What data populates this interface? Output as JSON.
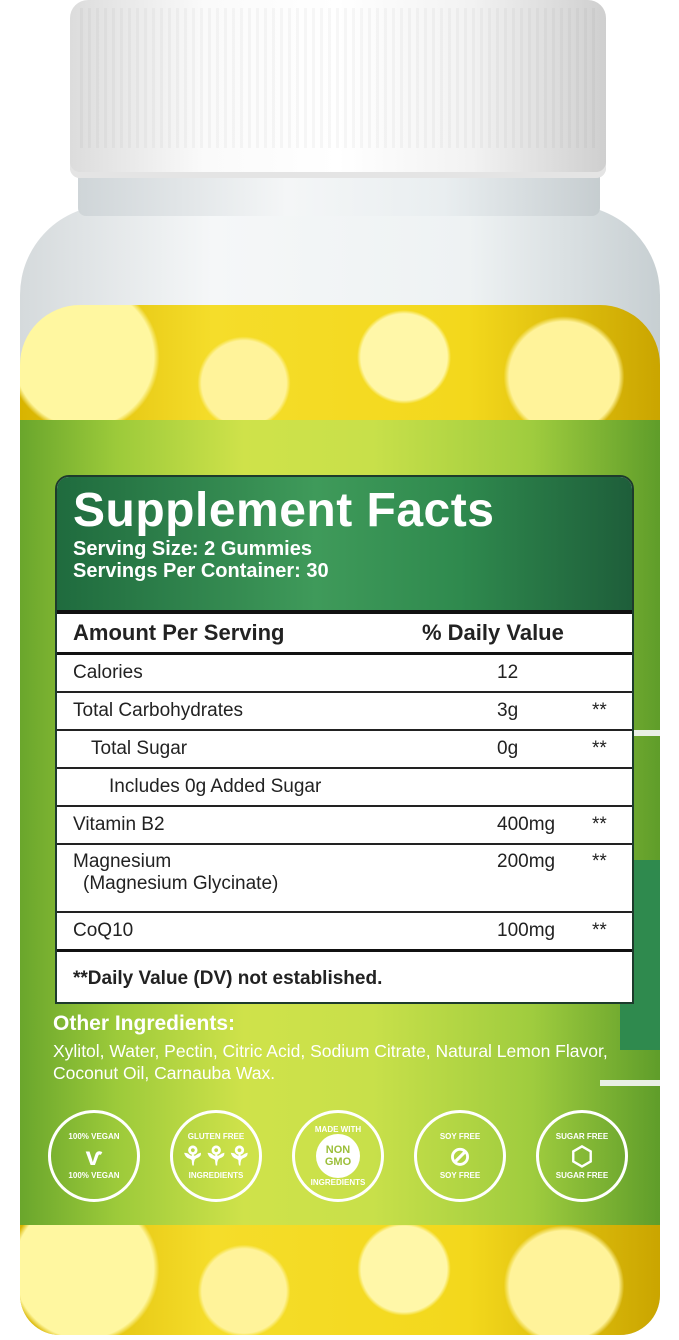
{
  "facts": {
    "title": "Supplement Facts",
    "serving_size": "Serving Size: 2 Gummies",
    "servings_per_container": "Servings Per Container: 30",
    "col_amount": "Amount Per Serving",
    "col_dv": "% Daily Value",
    "rows": [
      {
        "name": "Calories",
        "amount": "12",
        "dv": ""
      },
      {
        "name": "Total Carbohydrates",
        "amount": "3g",
        "dv": "**"
      },
      {
        "name": "Total Sugar",
        "amount": "0g",
        "dv": "**"
      },
      {
        "name": "Includes 0g Added Sugar",
        "amount": "",
        "dv": ""
      },
      {
        "name": "Vitamin B2",
        "amount": "400mg",
        "dv": "**"
      },
      {
        "name": "Magnesium",
        "sub": "(Magnesium Glycinate)",
        "amount": "200mg",
        "dv": "**"
      },
      {
        "name": "CoQ10",
        "amount": "100mg",
        "dv": "**"
      }
    ],
    "footnote": "**Daily Value (DV) not established."
  },
  "other": {
    "heading": "Other Ingredients:",
    "text": "Xylitol, Water, Pectin, Citric Acid, Sodium Citrate, Natural Lemon Flavor, Coconut Oil, Carnauba Wax."
  },
  "badges": [
    {
      "top": "100% VEGAN",
      "bottom": "100% VEGAN",
      "icon": "vegan-v-icon"
    },
    {
      "top": "GLUTEN FREE",
      "bottom": "INGREDIENTS",
      "icon": "wheat-icon"
    },
    {
      "top": "MADE WITH",
      "center": "NON",
      "center2": "GMO",
      "bottom": "INGREDIENTS",
      "icon": "non-gmo-icon"
    },
    {
      "top": "SOY FREE",
      "bottom": "SOY FREE",
      "icon": "soybean-icon"
    },
    {
      "top": "SUGAR FREE",
      "bottom": "SUGAR FREE",
      "icon": "sugar-cubes-icon"
    }
  ],
  "colors": {
    "label_green": "#9cca3a",
    "header_green": "#2f8a4e",
    "gummy_yellow": "#f3d81c"
  }
}
